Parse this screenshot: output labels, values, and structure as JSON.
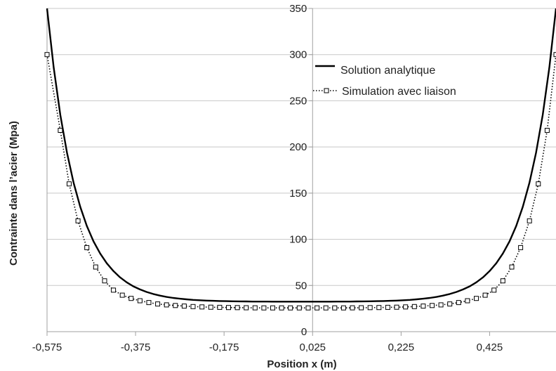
{
  "chart_data": {
    "type": "line",
    "xlabel": "Position x (m)",
    "ylabel": "Contrainte dans l’acier  (Mpa)",
    "xlim": [
      -0.575,
      0.575
    ],
    "ylim": [
      0,
      350
    ],
    "x_ticks": [
      "-0,575",
      "-0,375",
      "-0,175",
      "0,025",
      "0,225",
      "0,425"
    ],
    "x_tick_values": [
      -0.575,
      -0.375,
      -0.175,
      0.025,
      0.225,
      0.425
    ],
    "y_ticks": [
      "0",
      "50",
      "100",
      "150",
      "200",
      "250",
      "300",
      "350"
    ],
    "y_tick_values": [
      0,
      50,
      100,
      150,
      200,
      250,
      300,
      350
    ],
    "grid": true,
    "legend_position": "top-right",
    "series": [
      {
        "name": "Solution analytique",
        "style": "solid",
        "color": "#000000",
        "x": [
          -0.575,
          -0.56,
          -0.545,
          -0.53,
          -0.515,
          -0.5,
          -0.485,
          -0.47,
          -0.455,
          -0.44,
          -0.425,
          -0.41,
          -0.395,
          -0.38,
          -0.365,
          -0.35,
          -0.335,
          -0.32,
          -0.305,
          -0.29,
          -0.275,
          -0.26,
          -0.245,
          -0.23,
          -0.215,
          -0.2,
          -0.185,
          -0.17,
          -0.155,
          -0.14,
          -0.125,
          -0.11,
          -0.095,
          -0.08,
          -0.065,
          -0.05,
          -0.035,
          -0.02,
          -0.005,
          0.005,
          0.02,
          0.035,
          0.05,
          0.065,
          0.08,
          0.095,
          0.11,
          0.125,
          0.14,
          0.155,
          0.17,
          0.185,
          0.2,
          0.215,
          0.23,
          0.245,
          0.26,
          0.275,
          0.29,
          0.305,
          0.32,
          0.335,
          0.35,
          0.365,
          0.38,
          0.395,
          0.41,
          0.425,
          0.44,
          0.455,
          0.47,
          0.485,
          0.5,
          0.515,
          0.53,
          0.545,
          0.56,
          0.575
        ],
        "y": [
          350,
          285.9,
          234.8,
          193.9,
          161.3,
          135.2,
          114.4,
          97.8,
          84.6,
          74,
          65.6,
          58.8,
          53.4,
          49.1,
          45.7,
          43,
          40.8,
          39,
          37.6,
          36.5,
          35.7,
          35,
          34.4,
          34,
          33.6,
          33.4,
          33.2,
          33,
          32.9,
          32.8,
          32.7,
          32.6,
          32.6,
          32.6,
          32.5,
          32.5,
          32.5,
          32.5,
          32.5,
          32.5,
          32.5,
          32.5,
          32.5,
          32.5,
          32.6,
          32.6,
          32.6,
          32.7,
          32.8,
          32.9,
          33,
          33.2,
          33.4,
          33.6,
          34,
          34.4,
          35,
          35.7,
          36.5,
          37.6,
          39,
          40.8,
          43,
          45.7,
          49.1,
          53.4,
          58.8,
          65.6,
          74,
          84.6,
          97.8,
          114.4,
          135.2,
          161.3,
          193.9,
          234.8,
          285.9,
          350
        ]
      },
      {
        "name": "Simulation avec liaison",
        "style": "dotted-square",
        "color": "#000000",
        "x": [
          -0.575,
          -0.545,
          -0.525,
          -0.505,
          -0.485,
          -0.465,
          -0.445,
          -0.425,
          -0.405,
          -0.385,
          -0.365,
          -0.345,
          -0.325,
          -0.305,
          -0.285,
          -0.265,
          -0.245,
          -0.225,
          -0.205,
          -0.185,
          -0.165,
          -0.145,
          -0.125,
          -0.105,
          -0.085,
          -0.065,
          -0.045,
          -0.025,
          -0.005,
          0.015,
          0.035,
          0.055,
          0.075,
          0.095,
          0.115,
          0.135,
          0.155,
          0.175,
          0.195,
          0.215,
          0.235,
          0.255,
          0.275,
          0.295,
          0.315,
          0.335,
          0.355,
          0.375,
          0.395,
          0.415,
          0.435,
          0.455,
          0.475,
          0.495,
          0.515,
          0.535,
          0.555,
          0.575
        ],
        "y": [
          300,
          218,
          160,
          120,
          91,
          70,
          55,
          45,
          39.5,
          36,
          33.5,
          31.5,
          30,
          29,
          28.3,
          27.7,
          27.2,
          26.8,
          26.5,
          26.3,
          26.1,
          26,
          25.9,
          25.8,
          25.7,
          25.7,
          25.7,
          25.7,
          25.7,
          25.7,
          25.7,
          25.7,
          25.7,
          25.7,
          25.8,
          25.9,
          26,
          26.1,
          26.3,
          26.5,
          26.8,
          27.2,
          27.7,
          28.3,
          29,
          30,
          31.5,
          33.5,
          36,
          39.5,
          45,
          55,
          70,
          91,
          120,
          160,
          218,
          300
        ]
      }
    ]
  }
}
